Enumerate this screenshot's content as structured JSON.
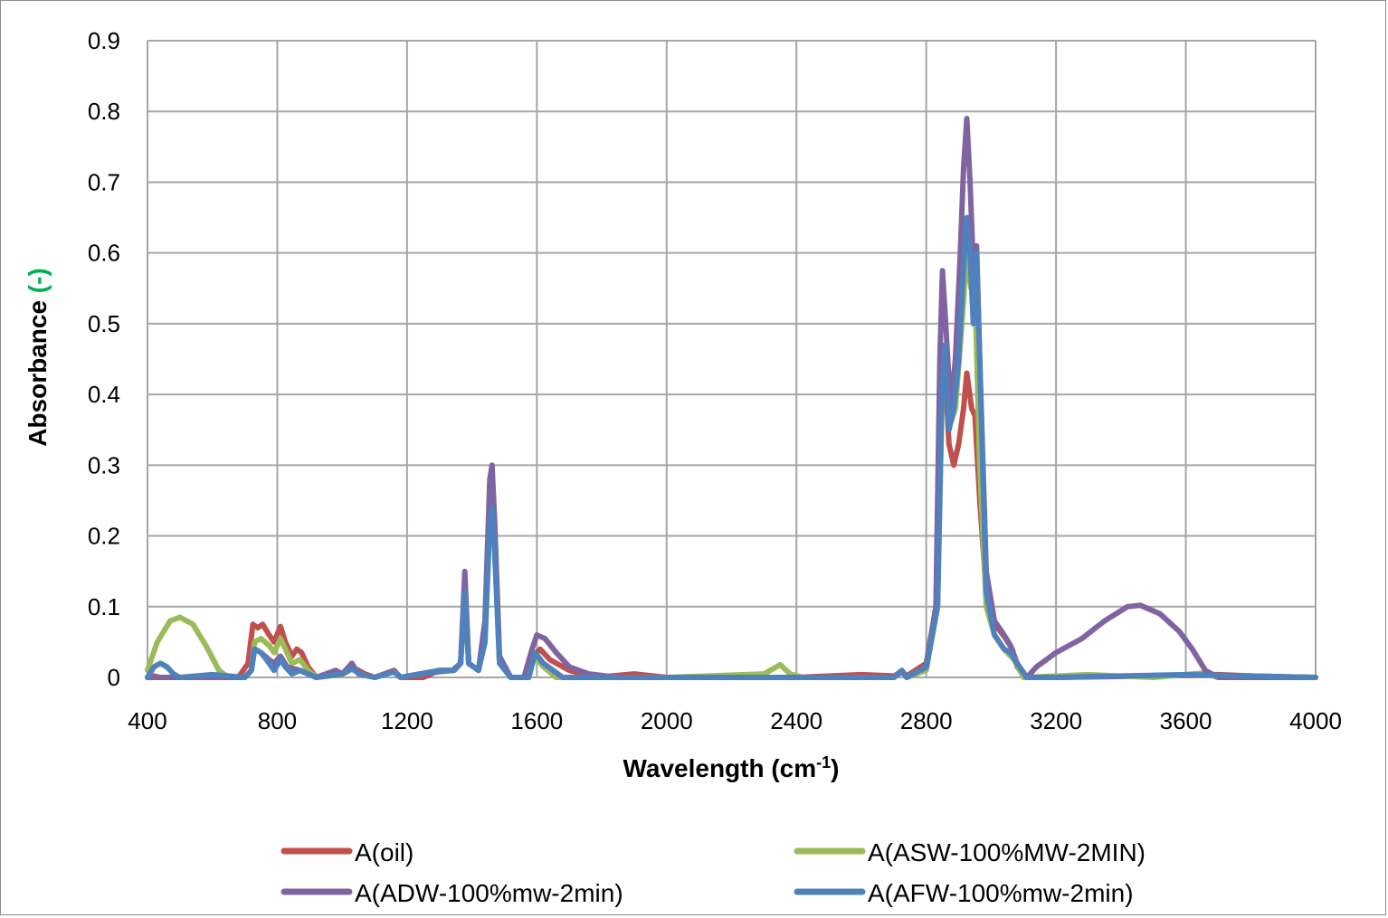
{
  "chart_data": {
    "type": "line",
    "title": "",
    "xlabel": "Wavelength (cm",
    "xlabel_superscript": "-1",
    "xlabel_suffix": ")",
    "ylabel": "Absorbance",
    "ylabel_unit": "(-)",
    "ylabel_unit_color": "#00b050",
    "xlim": [
      400,
      4000
    ],
    "ylim": [
      0,
      0.9
    ],
    "x_ticks": [
      "400",
      "800",
      "1200",
      "1600",
      "2000",
      "2400",
      "2800",
      "3200",
      "3600",
      "4000"
    ],
    "y_ticks": [
      "0",
      "0.1",
      "0.2",
      "0.3",
      "0.4",
      "0.5",
      "0.6",
      "0.7",
      "0.8",
      "0.9"
    ],
    "grid": true,
    "legend_position": "bottom",
    "series": [
      {
        "name": "A(oil)",
        "color": "#c0504d",
        "points": [
          [
            400,
            0.0
          ],
          [
            420,
            0.002
          ],
          [
            440,
            0.0
          ],
          [
            500,
            0.0
          ],
          [
            600,
            0.002
          ],
          [
            680,
            0.0
          ],
          [
            710,
            0.02
          ],
          [
            725,
            0.075
          ],
          [
            740,
            0.07
          ],
          [
            755,
            0.075
          ],
          [
            775,
            0.06
          ],
          [
            790,
            0.05
          ],
          [
            810,
            0.072
          ],
          [
            825,
            0.05
          ],
          [
            845,
            0.03
          ],
          [
            860,
            0.04
          ],
          [
            875,
            0.035
          ],
          [
            895,
            0.015
          ],
          [
            920,
            0.0
          ],
          [
            960,
            0.005
          ],
          [
            1000,
            0.005
          ],
          [
            1030,
            0.015
          ],
          [
            1050,
            0.01
          ],
          [
            1070,
            0.005
          ],
          [
            1100,
            0.0
          ],
          [
            1160,
            0.01
          ],
          [
            1180,
            0.0
          ],
          [
            1250,
            0.0
          ],
          [
            1300,
            0.01
          ],
          [
            1340,
            0.01
          ],
          [
            1365,
            0.02
          ],
          [
            1378,
            0.13
          ],
          [
            1390,
            0.02
          ],
          [
            1420,
            0.01
          ],
          [
            1440,
            0.06
          ],
          [
            1455,
            0.25
          ],
          [
            1462,
            0.28
          ],
          [
            1470,
            0.2
          ],
          [
            1485,
            0.02
          ],
          [
            1520,
            0.0
          ],
          [
            1560,
            0.0
          ],
          [
            1590,
            0.03
          ],
          [
            1610,
            0.04
          ],
          [
            1640,
            0.025
          ],
          [
            1700,
            0.01
          ],
          [
            1780,
            0.0
          ],
          [
            1900,
            0.005
          ],
          [
            2000,
            0.0
          ],
          [
            2300,
            0.0
          ],
          [
            2400,
            0.0
          ],
          [
            2600,
            0.004
          ],
          [
            2700,
            0.002
          ],
          [
            2725,
            0.008
          ],
          [
            2740,
            0.002
          ],
          [
            2800,
            0.02
          ],
          [
            2830,
            0.1
          ],
          [
            2845,
            0.35
          ],
          [
            2855,
            0.46
          ],
          [
            2870,
            0.33
          ],
          [
            2885,
            0.3
          ],
          [
            2900,
            0.33
          ],
          [
            2915,
            0.38
          ],
          [
            2925,
            0.43
          ],
          [
            2940,
            0.38
          ],
          [
            2950,
            0.37
          ],
          [
            2965,
            0.25
          ],
          [
            2985,
            0.12
          ],
          [
            3000,
            0.09
          ],
          [
            3020,
            0.07
          ],
          [
            3045,
            0.055
          ],
          [
            3065,
            0.04
          ],
          [
            3080,
            0.015
          ],
          [
            3110,
            0.0
          ],
          [
            3200,
            0.0
          ],
          [
            3500,
            0.002
          ],
          [
            3700,
            0.004
          ],
          [
            3800,
            0.002
          ],
          [
            4000,
            0.0
          ]
        ]
      },
      {
        "name": "A(ASW-100%MW-2MIN)",
        "color": "#9bbb59",
        "points": [
          [
            400,
            0.01
          ],
          [
            430,
            0.05
          ],
          [
            470,
            0.08
          ],
          [
            500,
            0.085
          ],
          [
            540,
            0.075
          ],
          [
            580,
            0.045
          ],
          [
            620,
            0.01
          ],
          [
            650,
            0.0
          ],
          [
            700,
            0.0
          ],
          [
            720,
            0.01
          ],
          [
            730,
            0.05
          ],
          [
            750,
            0.055
          ],
          [
            775,
            0.045
          ],
          [
            790,
            0.035
          ],
          [
            810,
            0.055
          ],
          [
            825,
            0.04
          ],
          [
            845,
            0.02
          ],
          [
            870,
            0.025
          ],
          [
            895,
            0.01
          ],
          [
            920,
            0.0
          ],
          [
            1000,
            0.004
          ],
          [
            1030,
            0.012
          ],
          [
            1060,
            0.004
          ],
          [
            1100,
            0.0
          ],
          [
            1160,
            0.008
          ],
          [
            1180,
            0.0
          ],
          [
            1300,
            0.01
          ],
          [
            1345,
            0.01
          ],
          [
            1365,
            0.02
          ],
          [
            1378,
            0.12
          ],
          [
            1390,
            0.02
          ],
          [
            1420,
            0.01
          ],
          [
            1440,
            0.05
          ],
          [
            1455,
            0.22
          ],
          [
            1462,
            0.24
          ],
          [
            1470,
            0.18
          ],
          [
            1485,
            0.02
          ],
          [
            1520,
            0.0
          ],
          [
            1570,
            0.0
          ],
          [
            1595,
            0.03
          ],
          [
            1620,
            0.015
          ],
          [
            1660,
            0.0
          ],
          [
            2000,
            0.0
          ],
          [
            2300,
            0.005
          ],
          [
            2350,
            0.018
          ],
          [
            2380,
            0.005
          ],
          [
            2420,
            0.0
          ],
          [
            2700,
            0.0
          ],
          [
            2725,
            0.008
          ],
          [
            2740,
            0.0
          ],
          [
            2800,
            0.01
          ],
          [
            2835,
            0.1
          ],
          [
            2850,
            0.42
          ],
          [
            2862,
            0.45
          ],
          [
            2875,
            0.36
          ],
          [
            2890,
            0.38
          ],
          [
            2910,
            0.5
          ],
          [
            2925,
            0.6
          ],
          [
            2938,
            0.55
          ],
          [
            2950,
            0.55
          ],
          [
            2965,
            0.3
          ],
          [
            2985,
            0.1
          ],
          [
            3010,
            0.06
          ],
          [
            3040,
            0.04
          ],
          [
            3070,
            0.025
          ],
          [
            3100,
            0.0
          ],
          [
            3300,
            0.004
          ],
          [
            3500,
            0.0
          ],
          [
            3650,
            0.006
          ],
          [
            3700,
            0.0
          ],
          [
            4000,
            0.0
          ]
        ]
      },
      {
        "name": "A(ADW-100%mw-2min)",
        "color": "#8064a2",
        "points": [
          [
            400,
            0.0
          ],
          [
            700,
            0.0
          ],
          [
            720,
            0.01
          ],
          [
            730,
            0.04
          ],
          [
            750,
            0.035
          ],
          [
            775,
            0.025
          ],
          [
            790,
            0.02
          ],
          [
            810,
            0.03
          ],
          [
            830,
            0.015
          ],
          [
            870,
            0.01
          ],
          [
            920,
            0.0
          ],
          [
            980,
            0.01
          ],
          [
            1000,
            0.005
          ],
          [
            1030,
            0.02
          ],
          [
            1050,
            0.005
          ],
          [
            1100,
            0.0
          ],
          [
            1160,
            0.008
          ],
          [
            1180,
            0.0
          ],
          [
            1300,
            0.008
          ],
          [
            1345,
            0.01
          ],
          [
            1365,
            0.02
          ],
          [
            1378,
            0.15
          ],
          [
            1390,
            0.02
          ],
          [
            1420,
            0.01
          ],
          [
            1440,
            0.08
          ],
          [
            1455,
            0.28
          ],
          [
            1462,
            0.3
          ],
          [
            1470,
            0.22
          ],
          [
            1485,
            0.03
          ],
          [
            1520,
            0.0
          ],
          [
            1560,
            0.0
          ],
          [
            1585,
            0.04
          ],
          [
            1600,
            0.06
          ],
          [
            1625,
            0.055
          ],
          [
            1660,
            0.035
          ],
          [
            1700,
            0.015
          ],
          [
            1760,
            0.005
          ],
          [
            1850,
            0.0
          ],
          [
            2000,
            0.0
          ],
          [
            2700,
            0.0
          ],
          [
            2725,
            0.008
          ],
          [
            2740,
            0.0
          ],
          [
            2800,
            0.015
          ],
          [
            2830,
            0.1
          ],
          [
            2842,
            0.45
          ],
          [
            2850,
            0.575
          ],
          [
            2860,
            0.5
          ],
          [
            2875,
            0.38
          ],
          [
            2890,
            0.45
          ],
          [
            2905,
            0.6
          ],
          [
            2915,
            0.72
          ],
          [
            2925,
            0.79
          ],
          [
            2935,
            0.7
          ],
          [
            2945,
            0.58
          ],
          [
            2955,
            0.61
          ],
          [
            2965,
            0.45
          ],
          [
            2985,
            0.15
          ],
          [
            3010,
            0.08
          ],
          [
            3040,
            0.06
          ],
          [
            3060,
            0.045
          ],
          [
            3080,
            0.02
          ],
          [
            3110,
            0.0
          ],
          [
            3140,
            0.015
          ],
          [
            3200,
            0.035
          ],
          [
            3280,
            0.055
          ],
          [
            3350,
            0.08
          ],
          [
            3420,
            0.1
          ],
          [
            3460,
            0.102
          ],
          [
            3520,
            0.09
          ],
          [
            3580,
            0.065
          ],
          [
            3620,
            0.04
          ],
          [
            3660,
            0.01
          ],
          [
            3700,
            0.0
          ],
          [
            4000,
            0.0
          ]
        ]
      },
      {
        "name": "A(AFW-100%mw-2min)",
        "color": "#4f81bd",
        "points": [
          [
            400,
            0.0
          ],
          [
            420,
            0.015
          ],
          [
            440,
            0.02
          ],
          [
            460,
            0.015
          ],
          [
            480,
            0.005
          ],
          [
            500,
            0.0
          ],
          [
            600,
            0.004
          ],
          [
            700,
            0.0
          ],
          [
            720,
            0.01
          ],
          [
            730,
            0.04
          ],
          [
            750,
            0.035
          ],
          [
            775,
            0.02
          ],
          [
            790,
            0.01
          ],
          [
            810,
            0.025
          ],
          [
            825,
            0.015
          ],
          [
            845,
            0.005
          ],
          [
            870,
            0.01
          ],
          [
            895,
            0.005
          ],
          [
            920,
            0.0
          ],
          [
            1000,
            0.005
          ],
          [
            1030,
            0.012
          ],
          [
            1060,
            0.004
          ],
          [
            1100,
            0.0
          ],
          [
            1160,
            0.008
          ],
          [
            1180,
            0.0
          ],
          [
            1300,
            0.01
          ],
          [
            1345,
            0.01
          ],
          [
            1365,
            0.02
          ],
          [
            1378,
            0.12
          ],
          [
            1390,
            0.02
          ],
          [
            1420,
            0.01
          ],
          [
            1440,
            0.05
          ],
          [
            1455,
            0.22
          ],
          [
            1462,
            0.24
          ],
          [
            1470,
            0.18
          ],
          [
            1485,
            0.02
          ],
          [
            1520,
            0.0
          ],
          [
            1575,
            0.0
          ],
          [
            1595,
            0.035
          ],
          [
            1620,
            0.02
          ],
          [
            1680,
            0.0
          ],
          [
            2000,
            0.0
          ],
          [
            2700,
            0.0
          ],
          [
            2725,
            0.01
          ],
          [
            2740,
            0.0
          ],
          [
            2800,
            0.015
          ],
          [
            2835,
            0.1
          ],
          [
            2848,
            0.4
          ],
          [
            2857,
            0.47
          ],
          [
            2870,
            0.35
          ],
          [
            2885,
            0.38
          ],
          [
            2900,
            0.45
          ],
          [
            2915,
            0.58
          ],
          [
            2925,
            0.65
          ],
          [
            2935,
            0.6
          ],
          [
            2945,
            0.5
          ],
          [
            2955,
            0.6
          ],
          [
            2965,
            0.45
          ],
          [
            2985,
            0.12
          ],
          [
            3010,
            0.06
          ],
          [
            3040,
            0.04
          ],
          [
            3060,
            0.035
          ],
          [
            3080,
            0.02
          ],
          [
            3110,
            0.0
          ],
          [
            3200,
            0.0
          ],
          [
            3400,
            0.002
          ],
          [
            3600,
            0.004
          ],
          [
            3800,
            0.002
          ],
          [
            4000,
            0.0
          ]
        ]
      }
    ]
  }
}
